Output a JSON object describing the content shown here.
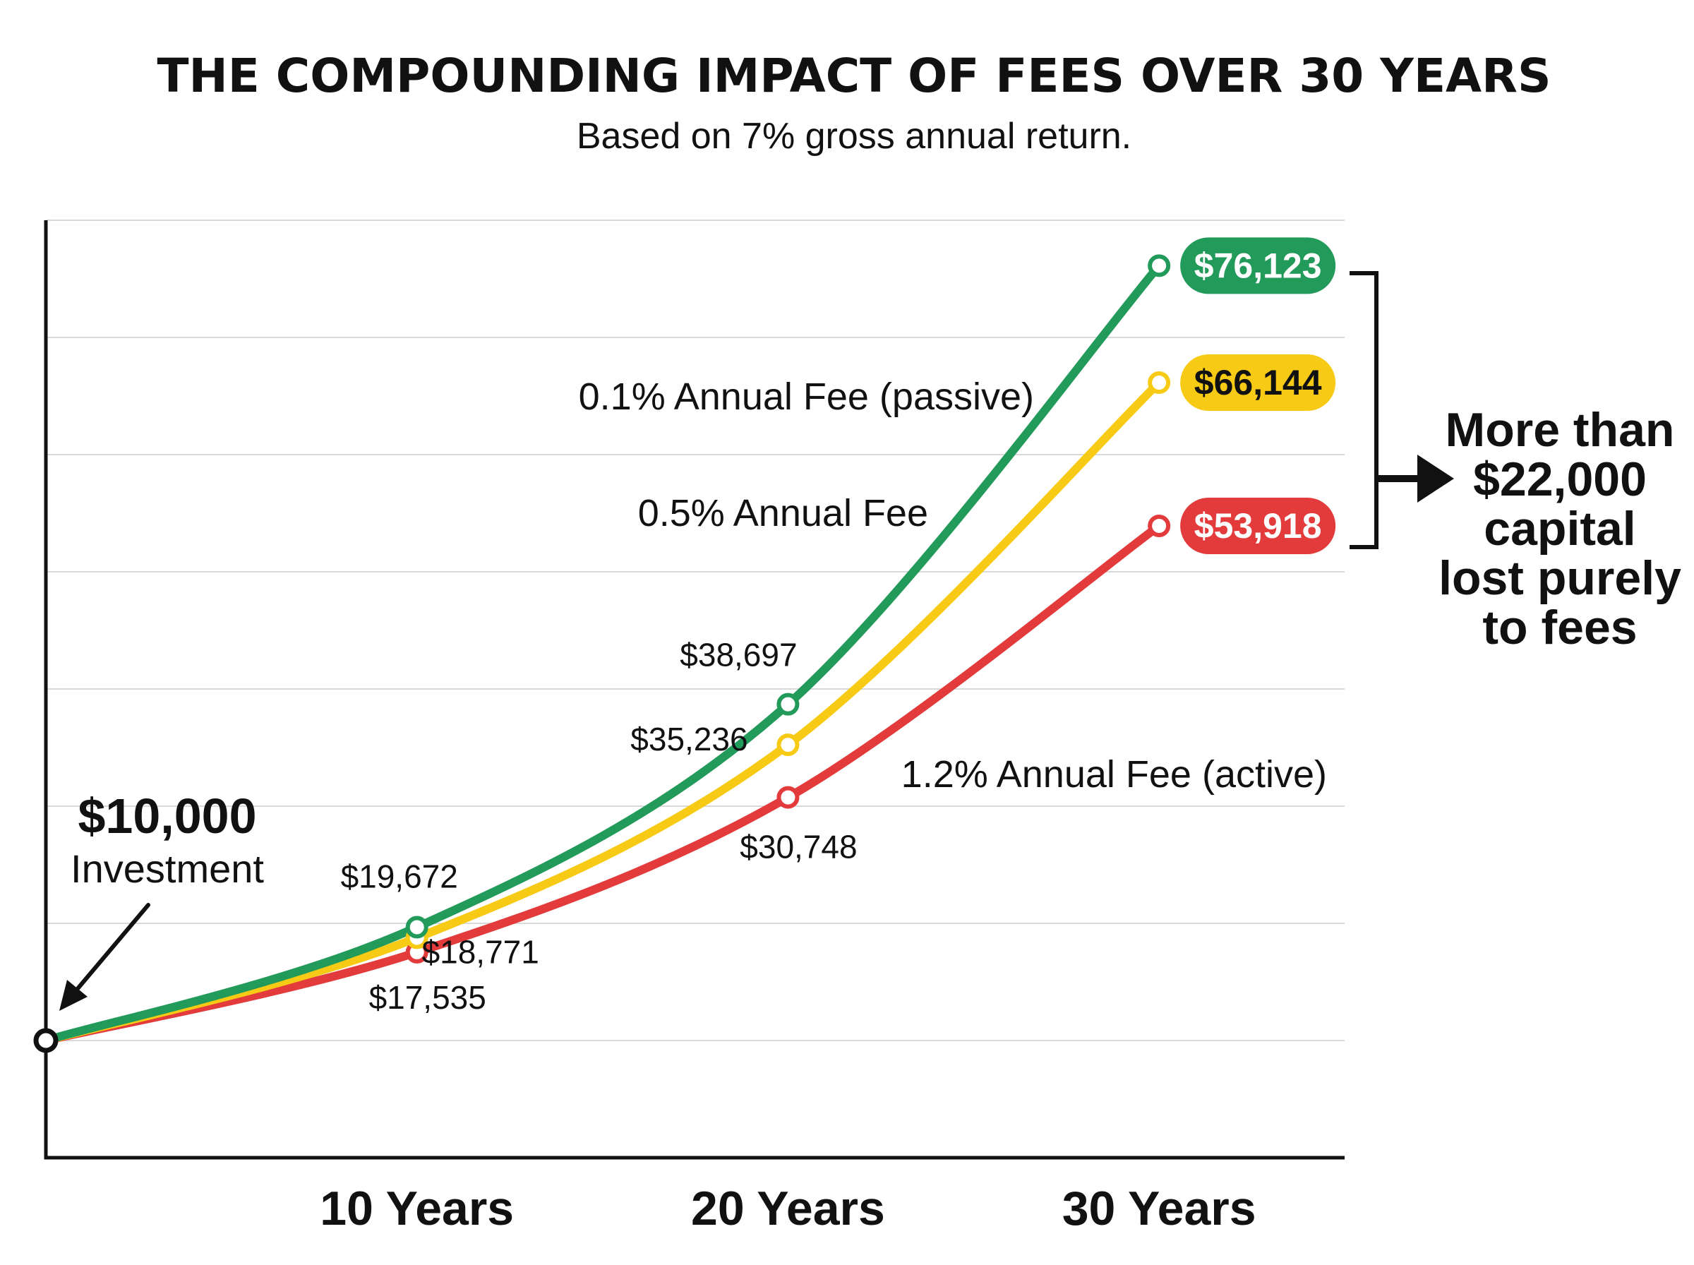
{
  "chart_data": {
    "type": "line",
    "title": "THE COMPOUNDING IMPACT OF FEES OVER 30 YEARS",
    "subtitle": "Based on 7% gross annual return.",
    "x": [
      0,
      10,
      20,
      30
    ],
    "x_tick_labels": [
      "10 Years",
      "20 Years",
      "30 Years"
    ],
    "x_tick_values": [
      10,
      20,
      30
    ],
    "xlim": [
      0,
      35
    ],
    "ylim": [
      0,
      80000
    ],
    "grid": true,
    "start": {
      "value_label": "$10,000",
      "label": "Investment"
    },
    "series": [
      {
        "name": "0.1% Annual Fee (passive)",
        "color": "#229a5a",
        "values": [
          10000,
          19672,
          38697,
          76123
        ],
        "labels": [
          "",
          "$19,672",
          "$38,697",
          "$76,123"
        ]
      },
      {
        "name": "0.5% Annual Fee",
        "color": "#f7cb15",
        "values": [
          10000,
          18771,
          35236,
          66144
        ],
        "labels": [
          "",
          "$18,771",
          "$35,236",
          "$66,144"
        ]
      },
      {
        "name": "1.2% Annual Fee (active)",
        "color": "#e33b3b",
        "values": [
          10000,
          17535,
          30748,
          53918
        ],
        "labels": [
          "",
          "$17,535",
          "$30,748",
          "$53,918"
        ]
      }
    ],
    "annotation": {
      "lines": [
        "More than",
        "$22,000",
        "capital",
        "lost purely",
        "to fees"
      ]
    }
  }
}
